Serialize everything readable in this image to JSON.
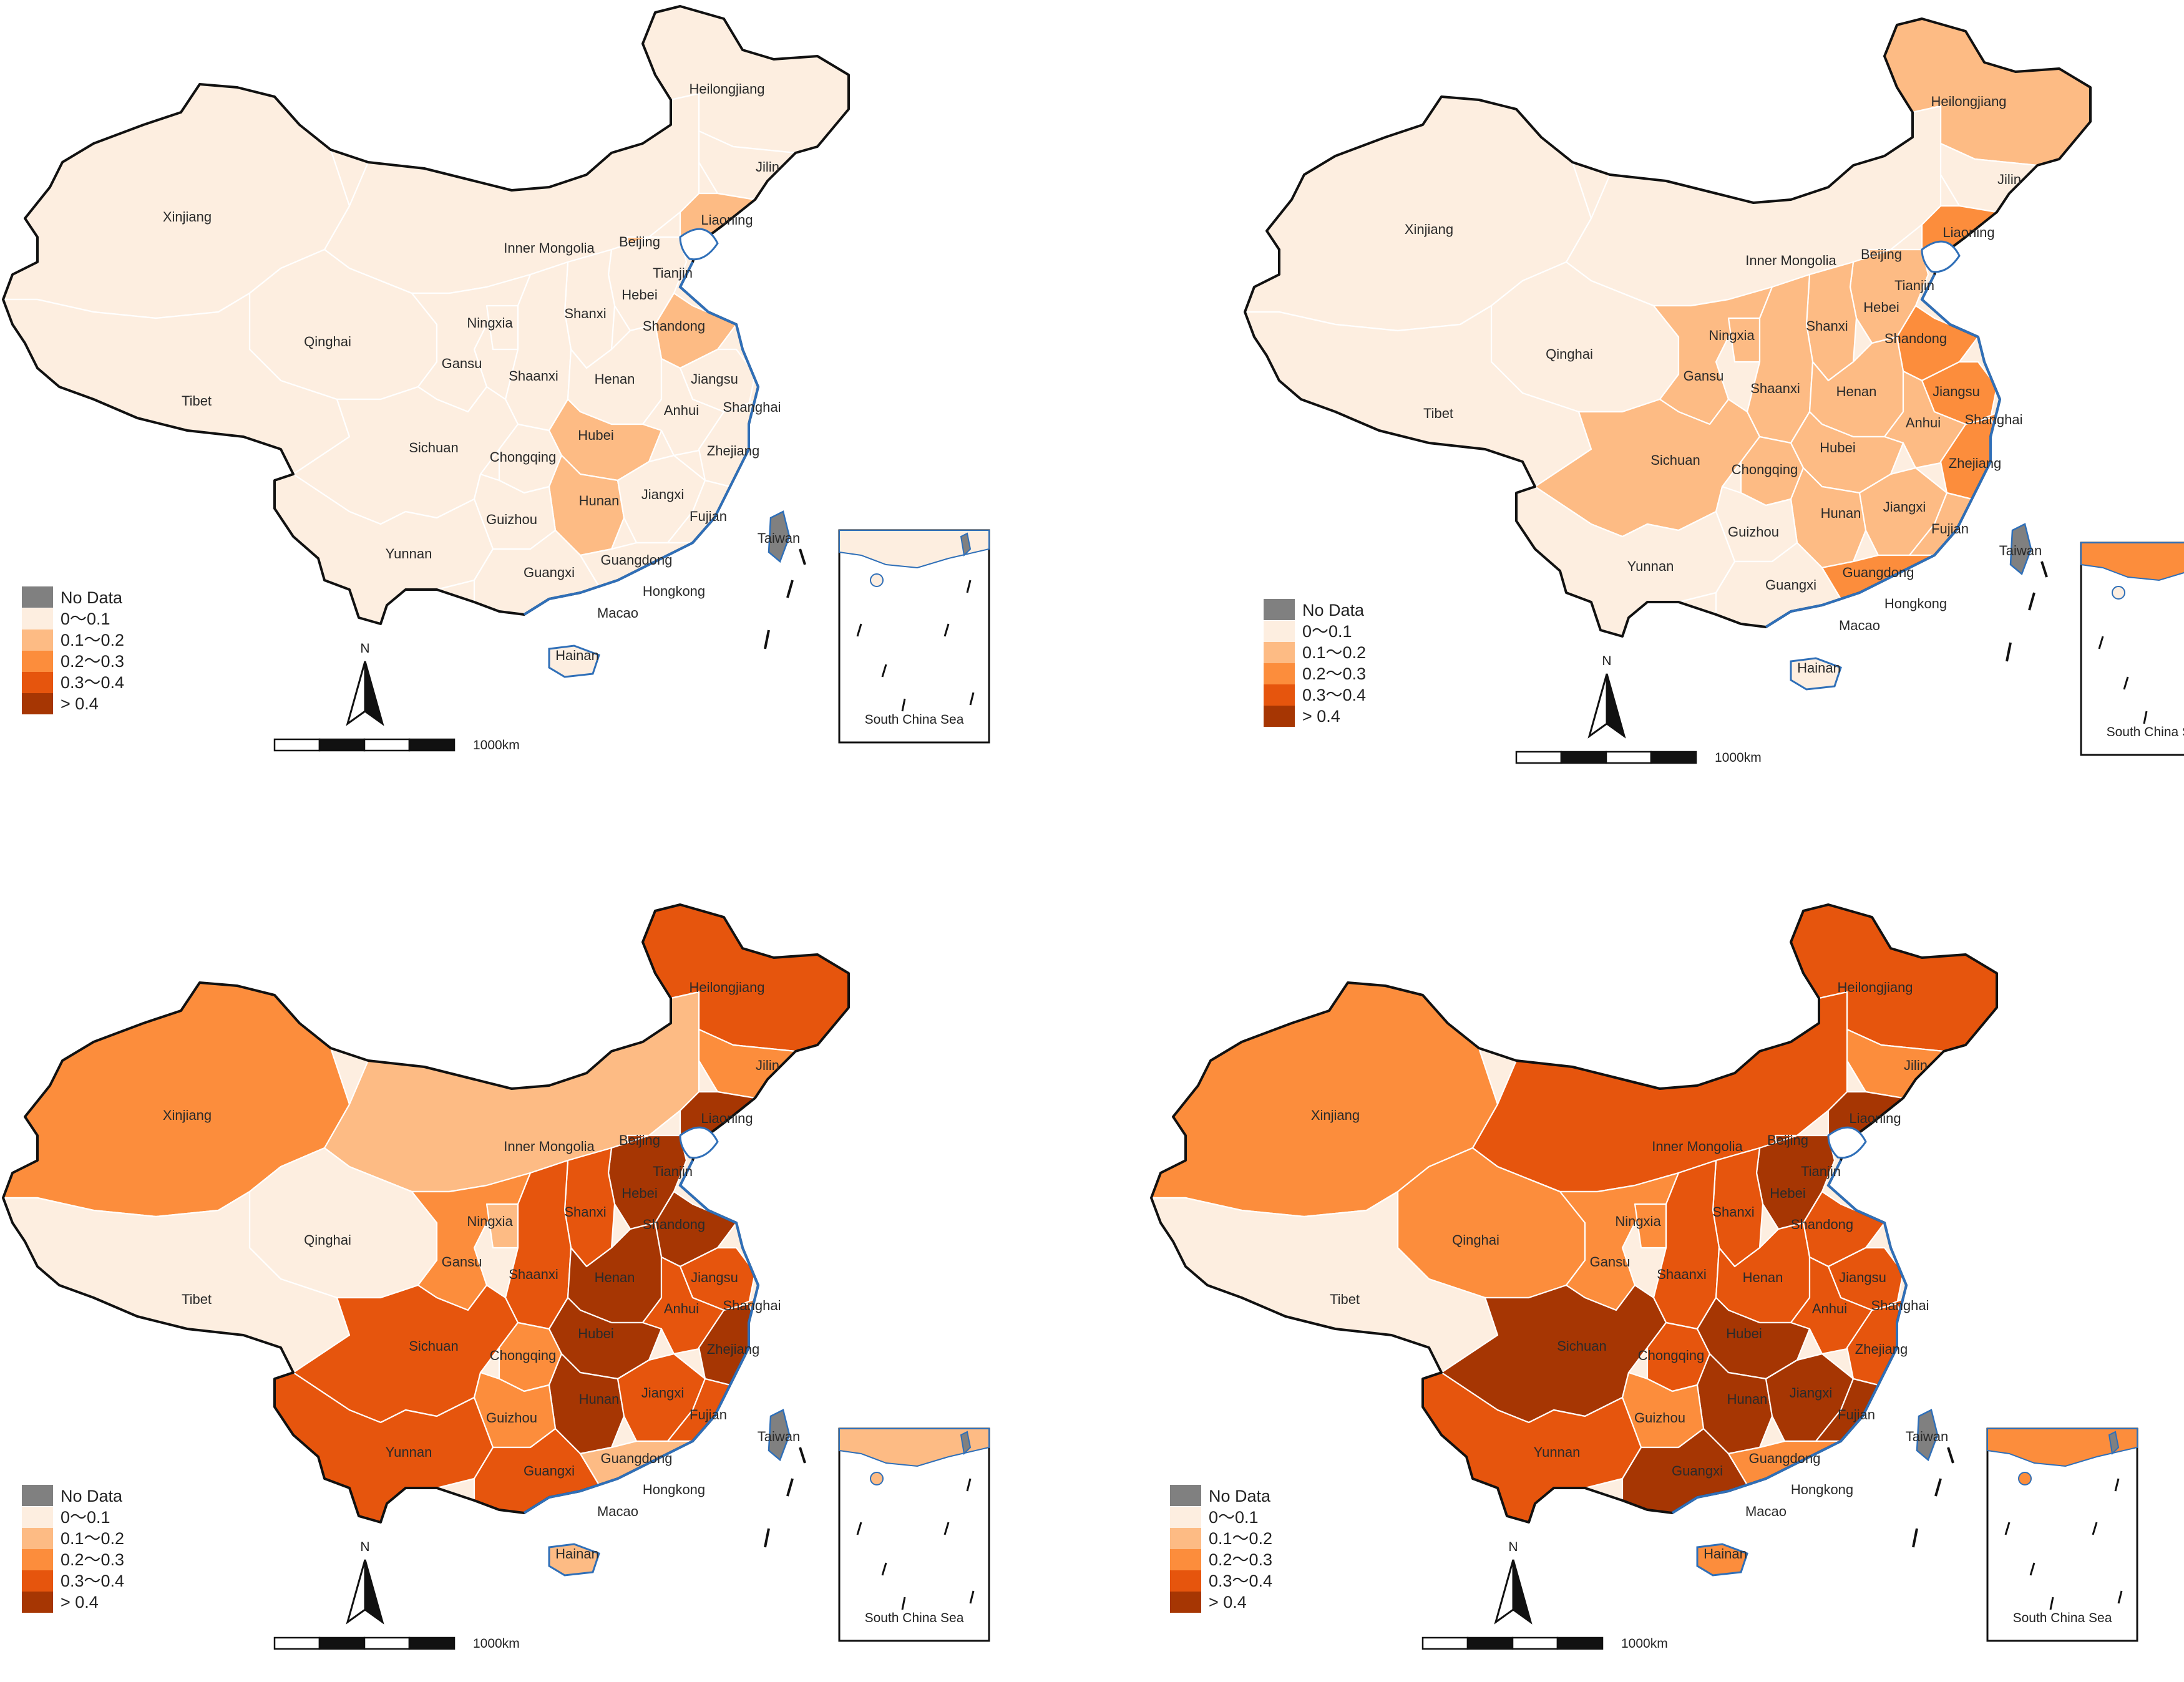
{
  "legend": {
    "no_data": "No Data",
    "classes": [
      "0～0.1",
      "0.1～0.2",
      "0.2～0.3",
      "0.3～0.4",
      "> 0.4"
    ],
    "no_data_color": "#808080",
    "class_colors": [
      "#fdeee0",
      "#fdbb84",
      "#fc8d3c",
      "#e6550d",
      "#a63603"
    ]
  },
  "scale_label": "1000km",
  "north_label": "N",
  "inset_label": "South China Sea",
  "taiwan_label": "Taiwan",
  "panels": [
    {
      "id": "top-left",
      "classes": {
        "Heilongjiang": 0,
        "Jilin": 0,
        "Liaoning": 1,
        "Inner Mongolia": 0,
        "Beijing": 1,
        "Tianjin": 0,
        "Hebei": 0,
        "Shanxi": 0,
        "Shandong": 1,
        "Xinjiang": 0,
        "Qinghai": 0,
        "Tibet": 0,
        "Gansu": 0,
        "Ningxia": 0,
        "Shaanxi": 0,
        "Henan": 0,
        "Jiangsu": 0,
        "Anhui": 0,
        "Shanghai": 0,
        "Sichuan": 0,
        "Chongqing": 0,
        "Hubei": 1,
        "Zhejiang": 0,
        "Hunan": 1,
        "Jiangxi": 0,
        "Fujian": 0,
        "Guizhou": 0,
        "Yunnan": 0,
        "Guangxi": 0,
        "Guangdong": 0,
        "Hongkong": 0,
        "Macao": 0,
        "Hainan": 0
      }
    },
    {
      "id": "top-right",
      "classes": {
        "Heilongjiang": 1,
        "Jilin": 0,
        "Liaoning": 2,
        "Inner Mongolia": 0,
        "Beijing": 1,
        "Tianjin": 0,
        "Hebei": 1,
        "Shanxi": 1,
        "Shandong": 2,
        "Xinjiang": 0,
        "Qinghai": 0,
        "Tibet": 0,
        "Gansu": 1,
        "Ningxia": 1,
        "Shaanxi": 1,
        "Henan": 1,
        "Jiangsu": 2,
        "Anhui": 1,
        "Shanghai": 2,
        "Sichuan": 1,
        "Chongqing": 1,
        "Hubei": 1,
        "Zhejiang": 2,
        "Hunan": 1,
        "Jiangxi": 1,
        "Fujian": 1,
        "Guizhou": 0,
        "Yunnan": 0,
        "Guangxi": 0,
        "Guangdong": 2,
        "Hongkong": 1,
        "Macao": 0,
        "Hainan": 0
      }
    },
    {
      "id": "bottom-left",
      "classes": {
        "Heilongjiang": 3,
        "Jilin": 2,
        "Liaoning": 4,
        "Inner Mongolia": 1,
        "Beijing": 4,
        "Tianjin": 3,
        "Hebei": 4,
        "Shanxi": 3,
        "Shandong": 4,
        "Xinjiang": 2,
        "Qinghai": 0,
        "Tibet": 0,
        "Gansu": 2,
        "Ningxia": 1,
        "Shaanxi": 3,
        "Henan": 4,
        "Jiangsu": 3,
        "Anhui": 3,
        "Shanghai": 2,
        "Sichuan": 3,
        "Chongqing": 2,
        "Hubei": 4,
        "Zhejiang": 4,
        "Hunan": 4,
        "Jiangxi": 3,
        "Fujian": 3,
        "Guizhou": 2,
        "Yunnan": 3,
        "Guangxi": 3,
        "Guangdong": 1,
        "Hongkong": 1,
        "Macao": 0,
        "Hainan": 1
      }
    },
    {
      "id": "bottom-right",
      "classes": {
        "Heilongjiang": 3,
        "Jilin": 2,
        "Liaoning": 4,
        "Inner Mongolia": 3,
        "Beijing": 4,
        "Tianjin": 3,
        "Hebei": 4,
        "Shanxi": 3,
        "Shandong": 3,
        "Xinjiang": 2,
        "Qinghai": 2,
        "Tibet": 0,
        "Gansu": 2,
        "Ningxia": 2,
        "Shaanxi": 3,
        "Henan": 3,
        "Jiangsu": 3,
        "Anhui": 3,
        "Shanghai": 3,
        "Sichuan": 4,
        "Chongqing": 3,
        "Hubei": 4,
        "Zhejiang": 3,
        "Hunan": 4,
        "Jiangxi": 4,
        "Fujian": 4,
        "Guizhou": 2,
        "Yunnan": 3,
        "Guangxi": 4,
        "Guangdong": 2,
        "Hongkong": 2,
        "Macao": 0,
        "Hainan": 2
      }
    }
  ]
}
